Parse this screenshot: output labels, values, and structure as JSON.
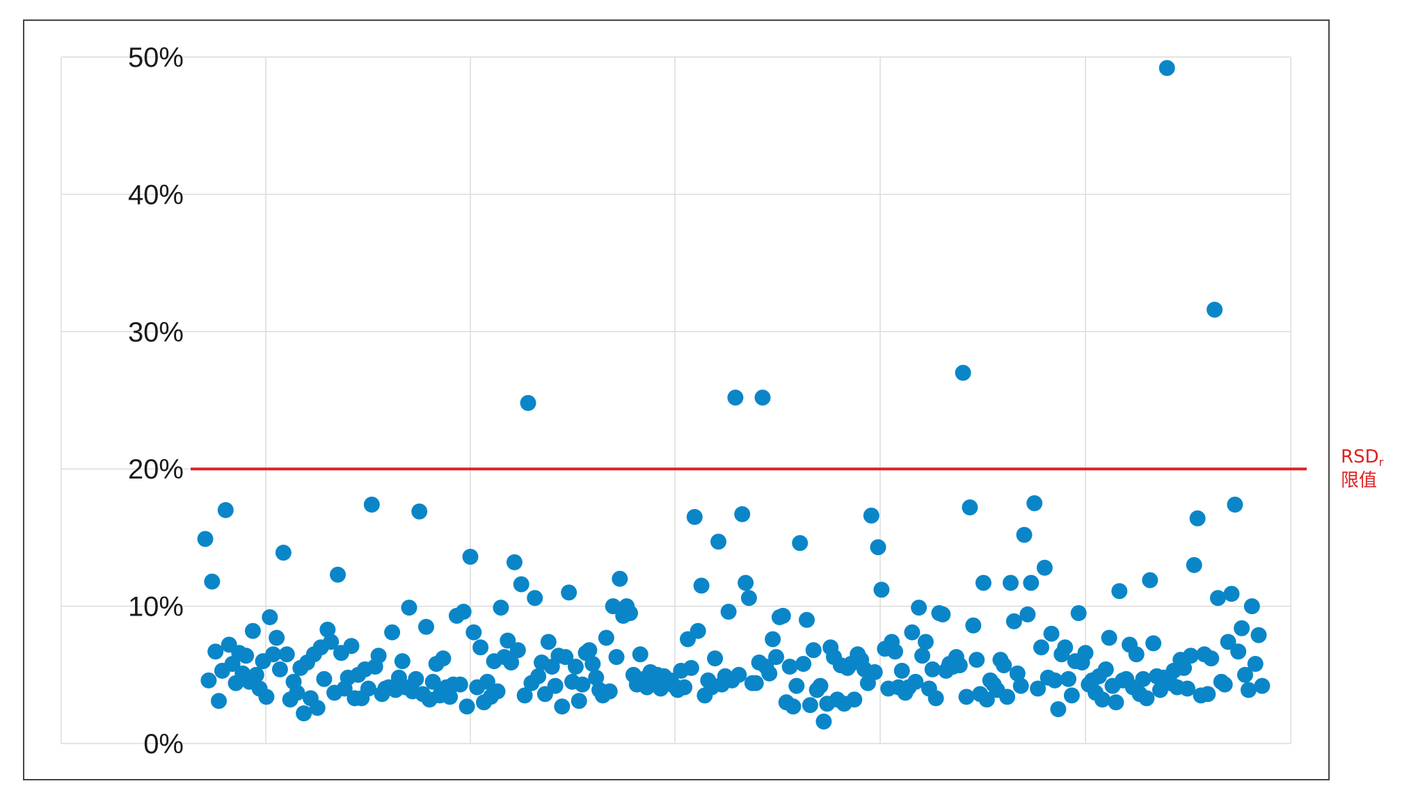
{
  "chart_data": {
    "type": "scatter",
    "title": "",
    "xlabel": "",
    "ylabel": "",
    "ylim": [
      0,
      50
    ],
    "y_unit": "%",
    "y_ticks": [
      "0%",
      "10%",
      "20%",
      "30%",
      "40%",
      "50%"
    ],
    "y_tick_values": [
      0,
      10,
      20,
      30,
      40,
      50
    ],
    "x_tick_labels": [],
    "xlim": [
      1,
      320
    ],
    "grid": true,
    "reference_line": {
      "value": 20,
      "label_line1": "RSD",
      "label_sub": "r",
      "label_line2": "限值",
      "color": "#e02020"
    },
    "point_color": "#0a86c8",
    "series": [
      {
        "values": [
          14.9,
          4.6,
          11.8,
          6.7,
          3.1,
          5.3,
          17.0,
          7.2,
          5.8,
          4.4,
          6.6,
          5.1,
          6.4,
          4.5,
          8.2,
          5.0,
          4.0,
          6.0,
          3.4,
          9.2,
          6.5,
          7.7,
          5.4,
          13.9,
          6.5,
          3.2,
          4.5,
          3.7,
          5.5,
          2.2,
          5.9,
          3.3,
          6.5,
          2.6,
          7.0,
          4.7,
          8.3,
          7.4,
          3.7,
          12.3,
          6.6,
          4.0,
          4.8,
          7.1,
          3.3,
          5.0,
          3.3,
          5.4,
          4.0,
          17.4,
          5.6,
          6.4,
          3.6,
          4.0,
          4.1,
          8.1,
          3.9,
          4.8,
          6.0,
          4.1,
          9.9,
          3.8,
          4.7,
          16.9,
          3.6,
          8.5,
          3.2,
          4.5,
          5.8,
          3.5,
          6.2,
          4.1,
          3.4,
          4.3,
          9.3,
          4.3,
          9.6,
          2.7,
          13.6,
          8.1,
          4.1,
          7.0,
          3.0,
          4.5,
          3.4,
          6.0,
          3.8,
          9.9,
          6.3,
          7.5,
          5.9,
          13.2,
          6.8,
          11.6,
          3.5,
          24.8,
          4.4,
          10.6,
          4.9,
          5.9,
          3.6,
          7.4,
          5.6,
          4.2,
          6.4,
          2.7,
          6.3,
          11.0,
          4.5,
          5.6,
          3.1,
          4.3,
          6.6,
          6.8,
          5.8,
          4.8,
          3.9,
          3.5,
          7.7,
          3.8,
          10.0,
          6.3,
          12.0,
          9.3,
          10.0,
          9.5,
          5.0,
          4.3,
          6.5,
          4.7,
          4.1,
          5.2,
          4.7,
          5.0,
          4.0,
          4.9,
          4.5,
          4.6,
          4.2,
          3.9,
          5.3,
          4.1,
          7.6,
          5.5,
          16.5,
          8.2,
          11.5,
          3.5,
          4.6,
          4.1,
          6.2,
          14.7,
          4.3,
          4.9,
          9.6,
          4.6,
          25.2,
          5.0,
          16.7,
          11.7,
          10.6,
          4.4,
          4.4,
          5.9,
          25.2,
          5.6,
          5.1,
          7.6,
          6.3,
          9.2,
          9.3,
          3.0,
          5.6,
          2.7,
          4.2,
          14.6,
          5.8,
          9.0,
          2.8,
          6.8,
          3.9,
          4.2,
          1.6,
          2.9,
          7.0,
          6.3,
          3.2,
          5.7,
          2.9,
          5.5,
          5.8,
          3.2,
          6.5,
          6.1,
          5.4,
          4.4,
          16.6,
          5.2,
          14.3,
          11.2,
          6.9,
          4.0,
          7.4,
          6.7,
          4.1,
          5.3,
          3.7,
          4.1,
          8.1,
          4.5,
          9.9,
          6.4,
          7.4,
          4.0,
          5.4,
          3.3,
          9.5,
          9.4,
          5.3,
          5.8,
          5.6,
          6.3,
          5.7,
          27.0,
          3.4,
          17.2,
          8.6,
          6.1,
          3.6,
          11.7,
          3.2,
          4.6,
          4.3,
          3.9,
          6.1,
          5.7,
          3.4,
          11.7,
          8.9,
          5.1,
          4.2,
          15.2,
          9.4,
          11.7,
          17.5,
          4.0,
          7.0,
          12.8,
          4.8,
          8.0,
          4.6,
          2.5,
          6.5,
          7.0,
          4.7,
          3.5,
          6.0,
          9.5,
          5.9,
          6.6,
          4.3,
          4.6,
          3.7,
          4.9,
          3.2,
          5.4,
          7.7,
          4.2,
          3.0,
          11.1,
          4.6,
          4.7,
          7.2,
          4.1,
          6.5,
          3.6,
          4.7,
          3.3,
          11.9,
          7.3,
          4.9,
          3.9,
          4.8,
          49.2,
          4.4,
          5.3,
          4.1,
          6.1,
          5.5,
          4.0,
          6.4,
          13.0,
          16.4,
          3.5,
          6.5,
          3.6,
          6.2,
          31.6,
          10.6,
          4.5,
          4.3,
          7.4,
          10.9,
          17.4,
          6.7,
          8.4,
          5.0,
          3.9,
          10.0,
          5.8,
          7.9,
          4.2
        ]
      }
    ]
  }
}
